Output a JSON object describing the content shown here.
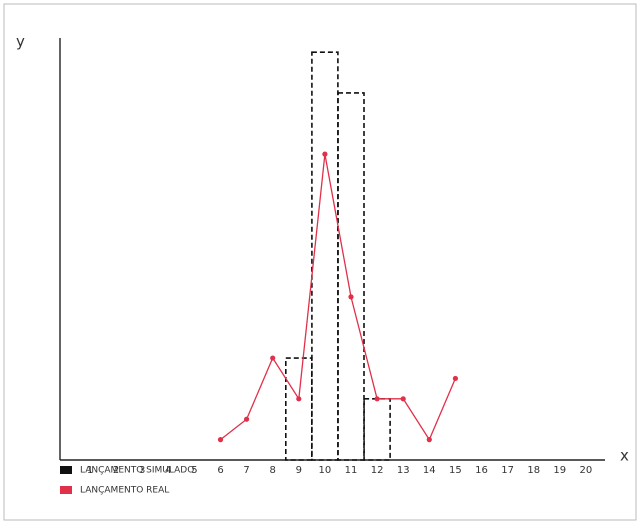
{
  "chart_data": {
    "type": "bar",
    "x_label": "x",
    "y_label": "y",
    "categories": [
      "1",
      "2",
      "3",
      "4",
      "5",
      "6",
      "7",
      "8",
      "9",
      "10",
      "11",
      "12",
      "13",
      "14",
      "15",
      "16",
      "17",
      "18",
      "19",
      "20"
    ],
    "series": [
      {
        "name": "LANÇAMENTO SIMULADO",
        "color": "#111111",
        "type": "bar",
        "values": [
          null,
          null,
          null,
          null,
          null,
          null,
          null,
          null,
          5,
          20,
          18,
          3,
          null,
          null,
          null,
          null,
          null,
          null,
          null,
          null
        ]
      },
      {
        "name": "LANÇAMENTO REAL",
        "color": "#e0304a",
        "type": "line",
        "values": [
          null,
          null,
          null,
          null,
          null,
          1,
          2,
          5,
          3,
          15,
          8,
          3,
          3,
          1,
          4,
          null,
          null,
          null,
          null,
          null
        ]
      }
    ],
    "ylim": [
      0,
      20.5
    ]
  }
}
